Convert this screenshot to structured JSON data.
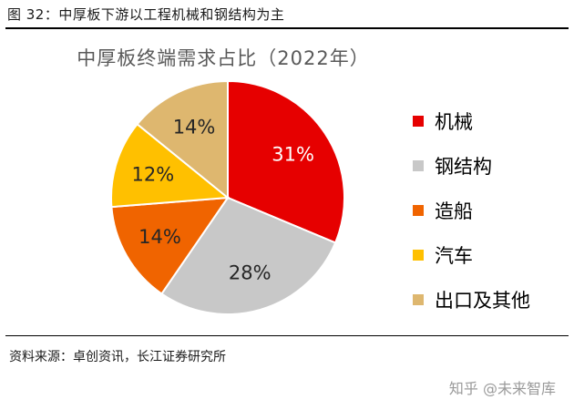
{
  "figure": {
    "caption": "图 32：中厚板下游以工程机械和钢结构为主",
    "source": "资料来源：卓创资讯，长江证券研究所",
    "watermark": "知乎 @未来智库"
  },
  "chart_data": {
    "type": "pie",
    "title": "中厚板终端需求占比（2022年）",
    "legend_position": "right",
    "slices": [
      {
        "name": "机械",
        "value": 31,
        "label": "31%",
        "color": "#E60000",
        "label_color": "#ffffff"
      },
      {
        "name": "钢结构",
        "value": 28,
        "label": "28%",
        "color": "#C8C8C8",
        "label_color": "#262626"
      },
      {
        "name": "造船",
        "value": 14,
        "label": "14%",
        "color": "#F06400",
        "label_color": "#262626"
      },
      {
        "name": "汽车",
        "value": 12,
        "label": "12%",
        "color": "#FFC000",
        "label_color": "#262626"
      },
      {
        "name": "出口及其他",
        "value": 14,
        "label": "14%",
        "color": "#DEB76F",
        "label_color": "#262626"
      }
    ]
  }
}
